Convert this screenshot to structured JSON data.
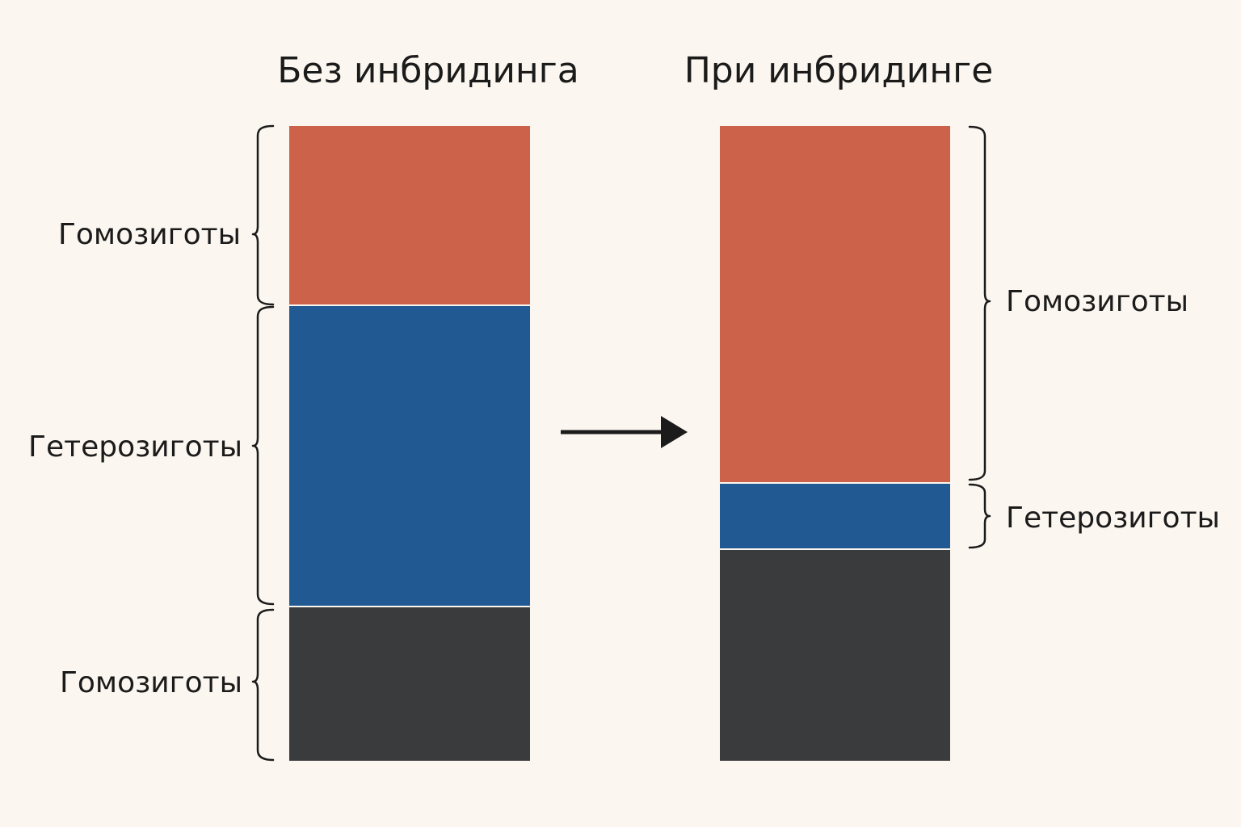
{
  "panels": {
    "left": {
      "title": "Без инбридинга",
      "segments": [
        {
          "share": 0.283,
          "color": "#cc6249"
        },
        {
          "share": 0.476,
          "color": "#215a92"
        },
        {
          "share": 0.241,
          "color": "#393b3c"
        }
      ],
      "labels": {
        "top_homozygotes": "Гомозиготы",
        "heterozygotes": "Гетерозиготы",
        "bottom_homozygotes": "Гомозиготы"
      }
    },
    "right": {
      "title": "При инбридинге",
      "segments": [
        {
          "share": 0.562,
          "color": "#cc6249"
        },
        {
          "share": 0.104,
          "color": "#215a92"
        },
        {
          "share": 0.334,
          "color": "#393b3c"
        }
      ],
      "labels": {
        "homozygotes": "Гомозиготы",
        "heterozygotes": "Гетерозиготы"
      }
    }
  },
  "colors": {
    "background": "#fbf6ef",
    "text": "#1b1b1b",
    "arrow": "#1b1b1b"
  },
  "icons": {
    "transition": "arrow-right-icon"
  }
}
